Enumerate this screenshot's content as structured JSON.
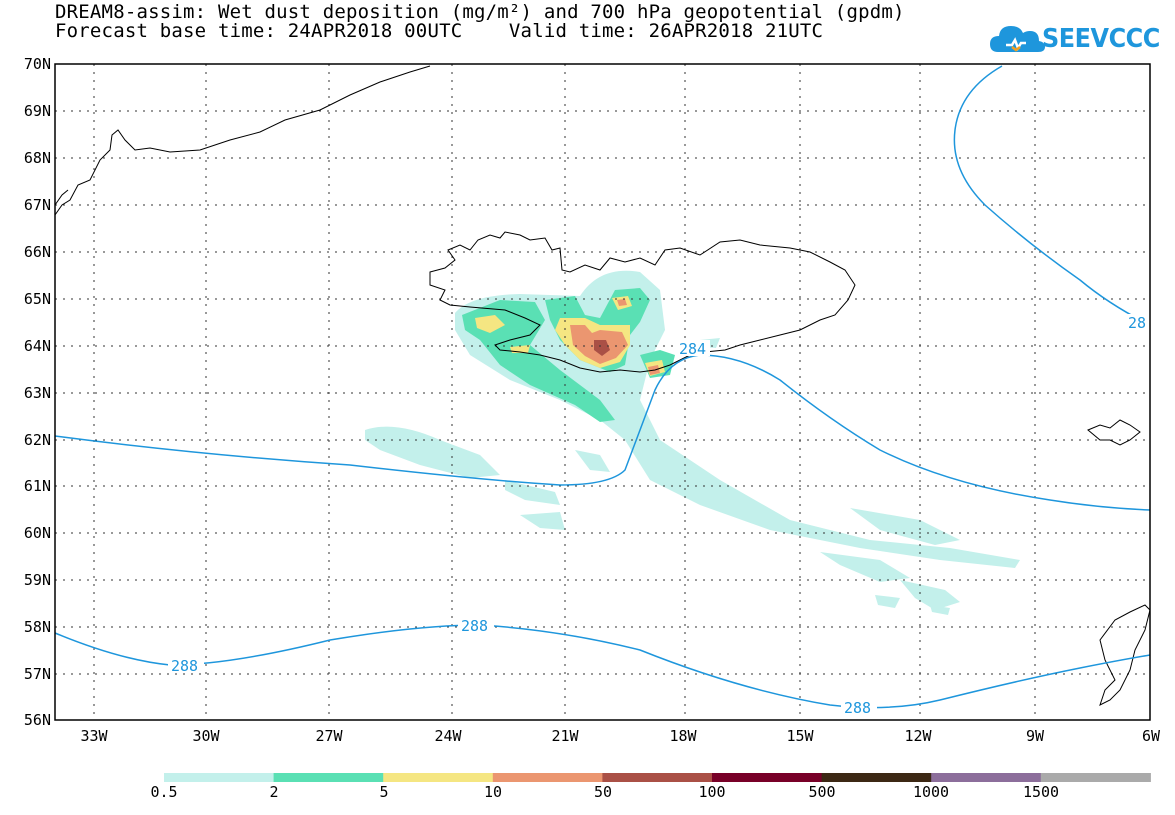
{
  "header": {
    "title_line1": "DREAM8-assim: Wet dust deposition (mg/m²) and 700 hPa geopotential (gpdm)",
    "title_line2": "Forecast base time: 24APR2018 00UTC    Valid time: 26APR2018 21UTC",
    "logo_text": "SEEVCCC",
    "logo_icon": "cloud-icon"
  },
  "map": {
    "lat_labels": [
      "70N",
      "69N",
      "68N",
      "67N",
      "66N",
      "65N",
      "64N",
      "63N",
      "62N",
      "61N",
      "60N",
      "59N",
      "58N",
      "57N",
      "56N"
    ],
    "lon_labels": [
      "33W",
      "30W",
      "27W",
      "24W",
      "21W",
      "18W",
      "15W",
      "12W",
      "9W",
      "6W"
    ],
    "contour_labels": [
      "284",
      "288",
      "288",
      "288",
      "28"
    ],
    "colors": {
      "frame": "#000000",
      "contour": "#1e96dc",
      "coast": "#000000"
    }
  },
  "colorbar": {
    "labels": [
      "0.5",
      "2",
      "5",
      "10",
      "50",
      "100",
      "500",
      "1000",
      "1500"
    ],
    "colors": [
      "#c3f0eb",
      "#5ae0b4",
      "#f5e682",
      "#eb9670",
      "#aa5046",
      "#780028",
      "#3c2814",
      "#8c6e9b",
      "#aaaaaa"
    ]
  }
}
